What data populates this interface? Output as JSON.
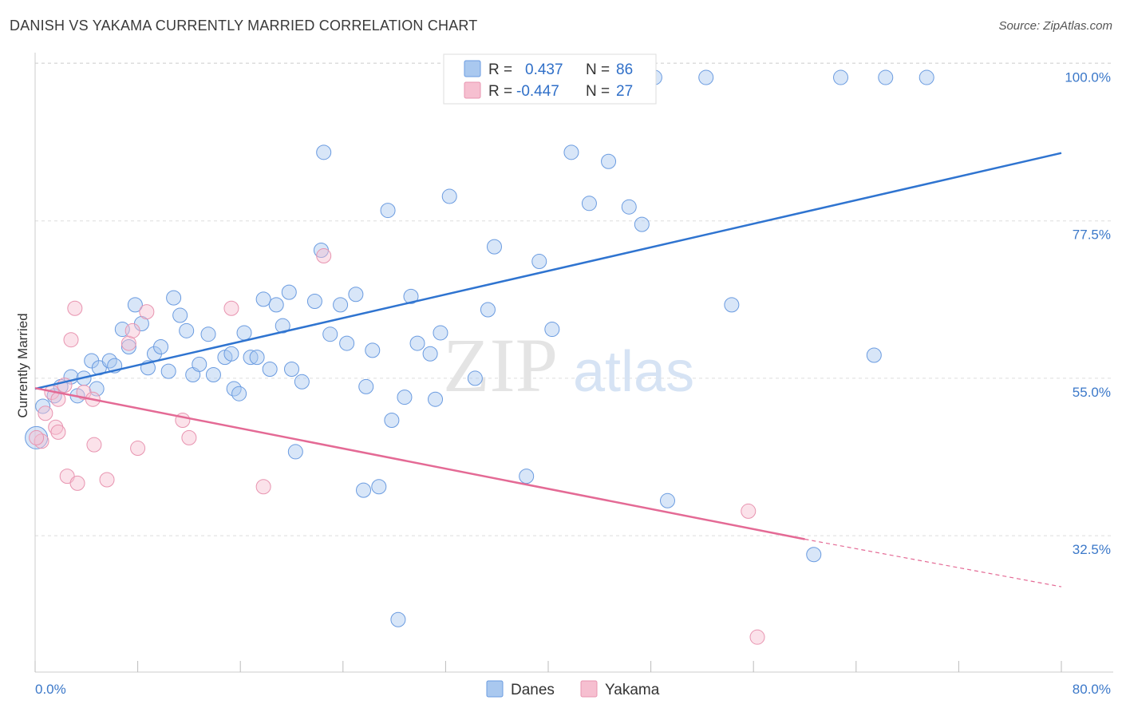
{
  "title": "DANISH VS YAKAMA CURRENTLY MARRIED CORRELATION CHART",
  "source": "Source: ZipAtlas.com",
  "watermark": {
    "zip": "ZIP",
    "atlas": "atlas"
  },
  "colors": {
    "danes_fill": "#a9c8ef",
    "danes_stroke": "#6a9be0",
    "danes_line": "#2f74d0",
    "yakama_fill": "#f6bfd0",
    "yakama_stroke": "#e894b0",
    "yakama_line": "#e46a95",
    "axis_label": "#3b78c9",
    "grid": "#dddddd"
  },
  "legend": {
    "rows": [
      {
        "r_label": "R =",
        "r_value": "0.437",
        "n_label": "N =",
        "n_value": "86"
      },
      {
        "r_label": "R =",
        "r_value": "-0.447",
        "n_label": "N =",
        "n_value": "27"
      }
    ]
  },
  "bottom_legend": [
    "Danes",
    "Yakama"
  ],
  "chart_data": {
    "type": "scatter",
    "title": "DANISH VS YAKAMA CURRENTLY MARRIED CORRELATION CHART",
    "xlabel": "",
    "ylabel": "Currently Married",
    "xlim": [
      0,
      80
    ],
    "ylim": [
      13,
      102
    ],
    "x_tick_labels": [
      "0.0%",
      "80.0%"
    ],
    "y_ticks": [
      32.5,
      55.0,
      77.5,
      100.0
    ],
    "y_tick_labels": [
      "32.5%",
      "55.0%",
      "77.5%",
      "100.0%"
    ],
    "grid": true,
    "series": [
      {
        "name": "Danes",
        "R": 0.437,
        "N": 86,
        "trend": {
          "x": [
            0,
            80
          ],
          "y": [
            53.5,
            87.2
          ]
        },
        "points": [
          [
            0.1,
            46.5
          ],
          [
            0.6,
            51
          ],
          [
            1.5,
            52.5
          ],
          [
            2,
            53.8
          ],
          [
            2.8,
            55.2
          ],
          [
            3.3,
            52.5
          ],
          [
            3.8,
            55
          ],
          [
            4.4,
            57.5
          ],
          [
            4.8,
            53.5
          ],
          [
            5,
            56.5
          ],
          [
            5.8,
            57.5
          ],
          [
            6.2,
            56.8
          ],
          [
            6.8,
            62
          ],
          [
            7.3,
            59.5
          ],
          [
            7.8,
            65.5
          ],
          [
            8.3,
            62.8
          ],
          [
            8.8,
            56.5
          ],
          [
            9.3,
            58.5
          ],
          [
            9.8,
            59.5
          ],
          [
            10.4,
            56
          ],
          [
            10.8,
            66.5
          ],
          [
            11.3,
            64
          ],
          [
            11.8,
            61.8
          ],
          [
            12.3,
            55.5
          ],
          [
            12.8,
            57
          ],
          [
            13.5,
            61.3
          ],
          [
            13.9,
            55.5
          ],
          [
            14.8,
            58
          ],
          [
            15.3,
            58.5
          ],
          [
            15.5,
            53.5
          ],
          [
            15.9,
            52.8
          ],
          [
            16.3,
            61.5
          ],
          [
            16.8,
            58
          ],
          [
            17.3,
            58
          ],
          [
            17.8,
            66.3
          ],
          [
            18.3,
            56.3
          ],
          [
            18.8,
            65.5
          ],
          [
            19.3,
            62.5
          ],
          [
            19.8,
            67.3
          ],
          [
            20,
            56.3
          ],
          [
            20.3,
            44.5
          ],
          [
            20.8,
            54.5
          ],
          [
            21.8,
            66
          ],
          [
            22.3,
            73.3
          ],
          [
            22.5,
            87.3
          ],
          [
            23,
            61.3
          ],
          [
            23.8,
            65.5
          ],
          [
            24.3,
            60
          ],
          [
            25,
            67
          ],
          [
            25.6,
            39
          ],
          [
            25.8,
            53.8
          ],
          [
            26.3,
            59
          ],
          [
            26.8,
            39.5
          ],
          [
            27.5,
            79
          ],
          [
            27.8,
            49
          ],
          [
            28.8,
            52.3
          ],
          [
            29.3,
            66.7
          ],
          [
            29.8,
            60
          ],
          [
            30.8,
            58.5
          ],
          [
            31.2,
            52
          ],
          [
            31.6,
            61.5
          ],
          [
            32.3,
            81
          ],
          [
            34.3,
            55
          ],
          [
            35.3,
            64.8
          ],
          [
            35.8,
            73.8
          ],
          [
            37.3,
            96
          ],
          [
            38.3,
            41
          ],
          [
            38.8,
            98
          ],
          [
            39.3,
            71.7
          ],
          [
            40.3,
            62
          ],
          [
            41.8,
            87.3
          ],
          [
            43.2,
            80
          ],
          [
            44.7,
            86
          ],
          [
            45.3,
            98
          ],
          [
            46.3,
            79.5
          ],
          [
            47.3,
            77
          ],
          [
            48.3,
            98
          ],
          [
            49.3,
            37.5
          ],
          [
            52.3,
            98
          ],
          [
            54.3,
            65.5
          ],
          [
            60.7,
            29.8
          ],
          [
            62.8,
            98
          ],
          [
            65.4,
            58.3
          ],
          [
            66.3,
            98
          ],
          [
            69.5,
            98
          ],
          [
            28.3,
            20.5
          ]
        ],
        "point_radius_override": {
          "0": 14
        }
      },
      {
        "name": "Yakama",
        "R": -0.447,
        "N": 27,
        "trend": {
          "x": [
            0,
            60
          ],
          "y": [
            53.6,
            32
          ],
          "dashed_to": {
            "x": 80,
            "y": 25.2
          }
        },
        "points": [
          [
            0.5,
            46
          ],
          [
            0.8,
            50
          ],
          [
            1.3,
            53
          ],
          [
            1.6,
            48
          ],
          [
            1.8,
            52
          ],
          [
            1.8,
            47.3
          ],
          [
            2.3,
            54
          ],
          [
            2.5,
            41
          ],
          [
            2.8,
            60.5
          ],
          [
            3.1,
            65
          ],
          [
            3.3,
            40
          ],
          [
            3.8,
            53
          ],
          [
            4.5,
            52
          ],
          [
            4.6,
            45.5
          ],
          [
            5.6,
            40.5
          ],
          [
            7.3,
            60
          ],
          [
            7.6,
            61.8
          ],
          [
            8,
            45
          ],
          [
            8.7,
            64.5
          ],
          [
            11.5,
            49
          ],
          [
            12,
            46.5
          ],
          [
            15.3,
            65
          ],
          [
            17.8,
            39.5
          ],
          [
            22.5,
            72.5
          ],
          [
            55.6,
            36
          ],
          [
            56.3,
            18
          ],
          [
            0.1,
            46.5
          ]
        ]
      }
    ]
  }
}
